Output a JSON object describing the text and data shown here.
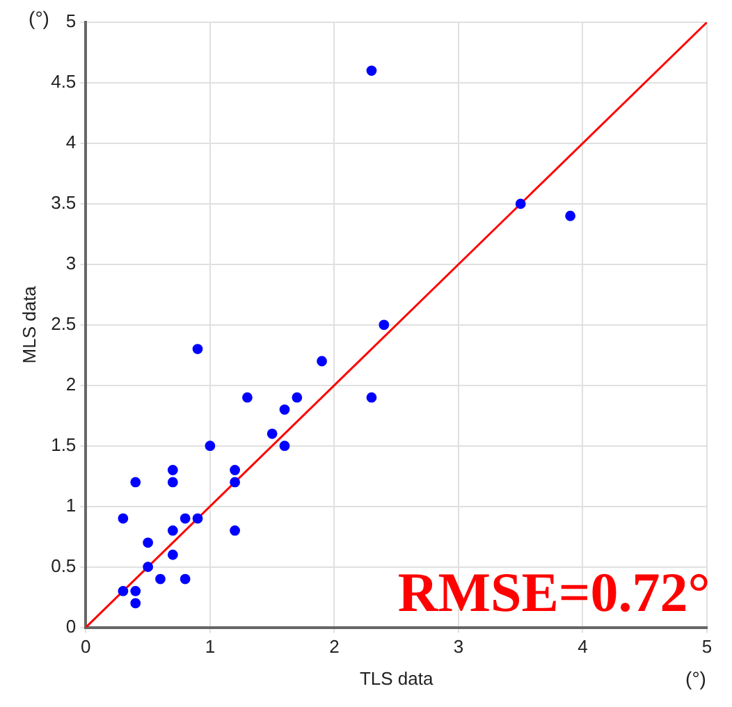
{
  "chart_data": {
    "type": "scatter",
    "xlabel": "TLS data",
    "ylabel": "MLS data",
    "xlim": [
      0,
      5
    ],
    "ylim": [
      0,
      5
    ],
    "xticks": [
      0,
      1,
      2,
      3,
      4,
      5
    ],
    "yticks": [
      0,
      0.5,
      1,
      1.5,
      2,
      2.5,
      3,
      3.5,
      4,
      4.5,
      5
    ],
    "grid": true,
    "legend": false,
    "marker": "circle",
    "series": [
      {
        "color": "#0000ff",
        "x": [
          0.3,
          0.4,
          0.3,
          0.4,
          0.4,
          0.5,
          0.5,
          0.6,
          0.7,
          0.7,
          0.7,
          0.7,
          0.8,
          0.8,
          0.9,
          1.0,
          1.2,
          1.2,
          1.2,
          1.3,
          1.5,
          1.6,
          1.6,
          1.7,
          2.3,
          0.9,
          1.9,
          2.3,
          2.4,
          3.5,
          3.9
        ],
        "values": [
          0.9,
          1.2,
          0.3,
          0.3,
          0.2,
          0.7,
          0.5,
          0.4,
          1.3,
          1.2,
          0.8,
          0.6,
          0.9,
          0.4,
          0.9,
          1.5,
          1.3,
          1.2,
          0.8,
          1.9,
          1.6,
          1.8,
          1.5,
          1.9,
          1.9,
          2.3,
          2.2,
          4.6,
          2.5,
          3.5,
          3.4
        ]
      },
      {
        "type": "line",
        "color": "#ff0000",
        "x": [
          0,
          5
        ],
        "values": [
          0,
          5
        ],
        "line_style": "solid",
        "marker": "none"
      }
    ],
    "annotations": [
      "(°)",
      "(°)",
      "RMSE=0.72°"
    ]
  }
}
